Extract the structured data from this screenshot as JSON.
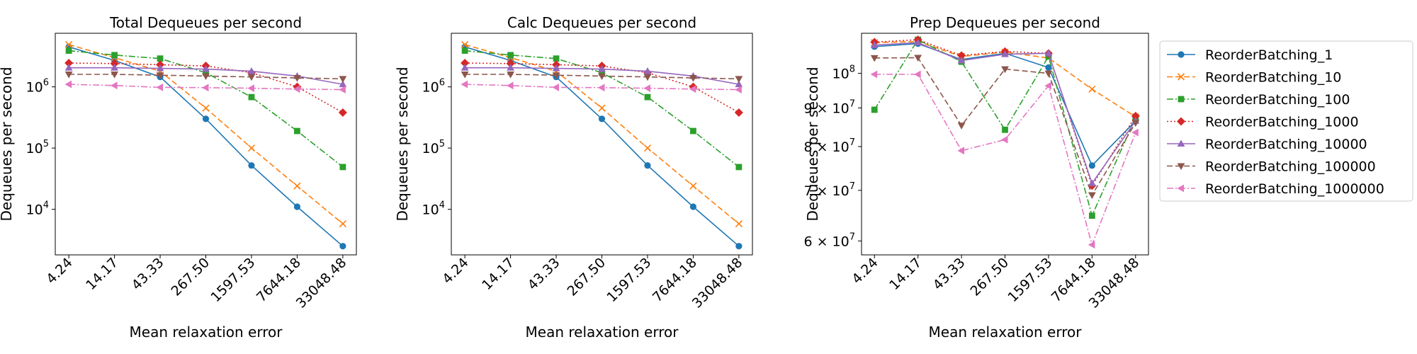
{
  "figure": {
    "x_ticks": [
      "4.24",
      "14.17",
      "43.33",
      "267.50",
      "1597.53",
      "7644.18",
      "33048.48"
    ],
    "xlabel": "Mean relaxation error",
    "ylabel": "Dequeues per second"
  },
  "legend": {
    "placement": "right, outside third panel",
    "entries": [
      {
        "name": "ReorderBatching_1",
        "color": "#1f77b4",
        "marker": "circle",
        "dash": "solid"
      },
      {
        "name": "ReorderBatching_10",
        "color": "#ff7f0e",
        "marker": "x",
        "dash": "dashed"
      },
      {
        "name": "ReorderBatching_100",
        "color": "#2ca02c",
        "marker": "square",
        "dash": "dashdot"
      },
      {
        "name": "ReorderBatching_1000",
        "color": "#d62728",
        "marker": "diamond",
        "dash": "dotted"
      },
      {
        "name": "ReorderBatching_10000",
        "color": "#9467bd",
        "marker": "triangle-up",
        "dash": "solid"
      },
      {
        "name": "ReorderBatching_100000",
        "color": "#8c564b",
        "marker": "triangle-down",
        "dash": "dashed"
      },
      {
        "name": "ReorderBatching_1000000",
        "color": "#e377c2",
        "marker": "triangle-left",
        "dash": "dashdot"
      }
    ]
  },
  "chart_data": [
    {
      "type": "line",
      "title": "Total Dequeues per second",
      "xlabel": "Mean relaxation error",
      "ylabel": "Dequeues per second",
      "y_scale": "log",
      "ylim": [
        1800,
        7500000
      ],
      "y_ticks": [
        {
          "value": 10000,
          "label": "10^4",
          "mant": "",
          "base": "10",
          "exp": "4"
        },
        {
          "value": 100000,
          "label": "10^5",
          "mant": "",
          "base": "10",
          "exp": "5"
        },
        {
          "value": 1000000,
          "label": "10^6",
          "mant": "",
          "base": "10",
          "exp": "6"
        }
      ],
      "x": [
        "4.24",
        "14.17",
        "43.33",
        "267.50",
        "1597.53",
        "7644.18",
        "33048.48"
      ],
      "series": [
        {
          "name": "ReorderBatching_1",
          "values": [
            4500000,
            2700000,
            1450000,
            300000,
            52000,
            11000,
            2500
          ]
        },
        {
          "name": "ReorderBatching_10",
          "values": [
            4900000,
            3000000,
            1800000,
            450000,
            100000,
            24000,
            5800
          ]
        },
        {
          "name": "ReorderBatching_100",
          "values": [
            3900000,
            3300000,
            2900000,
            1700000,
            680000,
            190000,
            49000
          ]
        },
        {
          "name": "ReorderBatching_1000",
          "values": [
            2450000,
            2400000,
            2300000,
            2200000,
            1700000,
            1000000,
            380000
          ]
        },
        {
          "name": "ReorderBatching_10000",
          "values": [
            2050000,
            2050000,
            2000000,
            1950000,
            1800000,
            1500000,
            1100000
          ]
        },
        {
          "name": "ReorderBatching_100000",
          "values": [
            1600000,
            1600000,
            1550000,
            1500000,
            1450000,
            1400000,
            1350000
          ]
        },
        {
          "name": "ReorderBatching_1000000",
          "values": [
            1100000,
            1050000,
            980000,
            970000,
            950000,
            920000,
            900000
          ]
        }
      ]
    },
    {
      "type": "line",
      "title": "Calc Dequeues per second",
      "xlabel": "Mean relaxation error",
      "ylabel": "Dequeues per second",
      "y_scale": "log",
      "ylim": [
        1800,
        7500000
      ],
      "y_ticks": [
        {
          "value": 10000,
          "label": "10^4",
          "mant": "",
          "base": "10",
          "exp": "4"
        },
        {
          "value": 100000,
          "label": "10^5",
          "mant": "",
          "base": "10",
          "exp": "5"
        },
        {
          "value": 1000000,
          "label": "10^6",
          "mant": "",
          "base": "10",
          "exp": "6"
        }
      ],
      "x": [
        "4.24",
        "14.17",
        "43.33",
        "267.50",
        "1597.53",
        "7644.18",
        "33048.48"
      ],
      "series": [
        {
          "name": "ReorderBatching_1",
          "values": [
            4500000,
            2700000,
            1450000,
            300000,
            52000,
            11000,
            2500
          ]
        },
        {
          "name": "ReorderBatching_10",
          "values": [
            4900000,
            3000000,
            1800000,
            450000,
            100000,
            24000,
            5800
          ]
        },
        {
          "name": "ReorderBatching_100",
          "values": [
            3900000,
            3300000,
            2900000,
            1700000,
            680000,
            190000,
            49000
          ]
        },
        {
          "name": "ReorderBatching_1000",
          "values": [
            2450000,
            2400000,
            2300000,
            2200000,
            1700000,
            1000000,
            380000
          ]
        },
        {
          "name": "ReorderBatching_10000",
          "values": [
            2050000,
            2050000,
            2000000,
            1950000,
            1800000,
            1500000,
            1100000
          ]
        },
        {
          "name": "ReorderBatching_100000",
          "values": [
            1600000,
            1600000,
            1550000,
            1500000,
            1450000,
            1400000,
            1350000
          ]
        },
        {
          "name": "ReorderBatching_1000000",
          "values": [
            1100000,
            1050000,
            980000,
            970000,
            950000,
            920000,
            900000
          ]
        }
      ]
    },
    {
      "type": "line",
      "title": "Prep Dequeues per second",
      "xlabel": "Mean relaxation error",
      "ylabel": "Dequeues per second",
      "y_scale": "log",
      "ylim": [
        57500000,
        113000000
      ],
      "y_ticks": [
        {
          "value": 60000000,
          "label": "6×10^7",
          "mant": "6 × ",
          "base": "10",
          "exp": "7"
        },
        {
          "value": 70000000,
          "label": "7×10^7",
          "mant": "7 × ",
          "base": "10",
          "exp": "7"
        },
        {
          "value": 80000000,
          "label": "8×10^7",
          "mant": "8 × ",
          "base": "10",
          "exp": "7"
        },
        {
          "value": 90000000,
          "label": "9×10^7",
          "mant": "9 × ",
          "base": "10",
          "exp": "7"
        },
        {
          "value": 100000000,
          "label": "10^8",
          "mant": "",
          "base": "10",
          "exp": "8"
        }
      ],
      "x": [
        "4.24",
        "14.17",
        "43.33",
        "267.50",
        "1597.53",
        "7644.18",
        "33048.48"
      ],
      "series": [
        {
          "name": "ReorderBatching_1",
          "values": [
            108500000,
            109500000,
            104300000,
            106300000,
            101800000,
            75500000,
            86500000
          ]
        },
        {
          "name": "ReorderBatching_10",
          "values": [
            109800000,
            110200000,
            105300000,
            106700000,
            104800000,
            95300000,
            87600000
          ]
        },
        {
          "name": "ReorderBatching_100",
          "values": [
            89500000,
            110800000,
            103600000,
            84200000,
            105300000,
            64800000,
            87400000
          ]
        },
        {
          "name": "ReorderBatching_1000",
          "values": [
            110000000,
            110800000,
            105600000,
            106900000,
            106300000,
            71000000,
            87800000
          ]
        },
        {
          "name": "ReorderBatching_10000",
          "values": [
            109000000,
            109800000,
            104000000,
            106000000,
            106300000,
            71500000,
            86500000
          ]
        },
        {
          "name": "ReorderBatching_100000",
          "values": [
            104800000,
            104900000,
            85300000,
            101300000,
            100000000,
            69000000,
            86000000
          ]
        },
        {
          "name": "ReorderBatching_1000000",
          "values": [
            99700000,
            99700000,
            79000000,
            81700000,
            96300000,
            59300000,
            83500000
          ]
        }
      ]
    }
  ]
}
